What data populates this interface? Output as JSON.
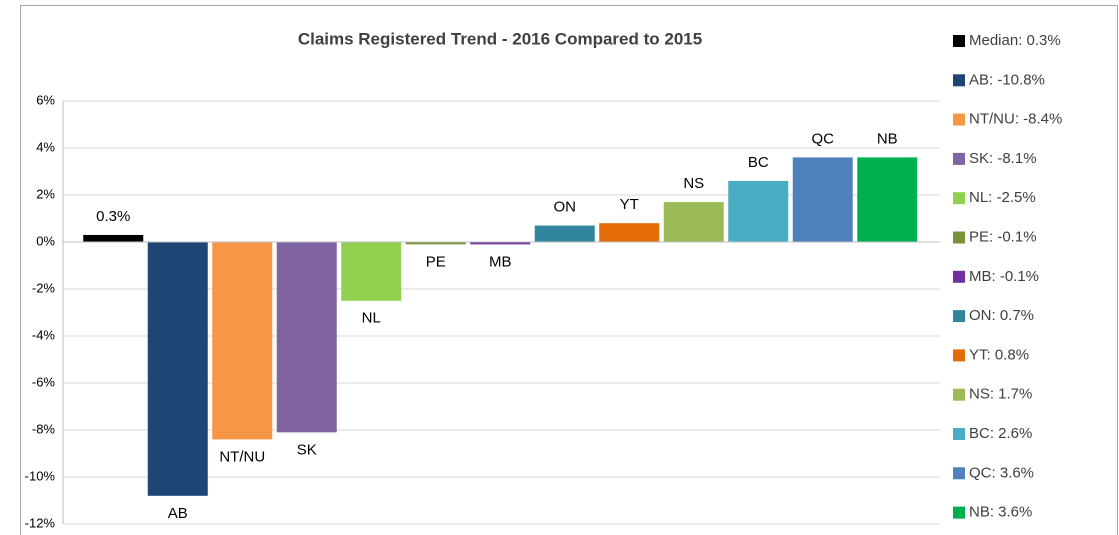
{
  "chart_data": {
    "type": "bar",
    "title": "Claims Registered Trend - 2016 Compared to 2015",
    "labels": [
      "0.3%",
      "AB",
      "NT/NU",
      "SK",
      "NL",
      "PE",
      "MB",
      "ON",
      "YT",
      "NS",
      "BC",
      "QC",
      "NB"
    ],
    "values": [
      0.3,
      -10.8,
      -8.4,
      -8.1,
      -2.5,
      -0.1,
      -0.1,
      0.7,
      0.8,
      1.7,
      2.6,
      3.6,
      3.6
    ],
    "colors": [
      "#000000",
      "#1f4577",
      "#f79646",
      "#8064a2",
      "#92d050",
      "#77933c",
      "#7030a0",
      "#31859c",
      "#e36c09",
      "#9bbb59",
      "#4bacc6",
      "#4f81bd",
      "#00b050"
    ],
    "legend": [
      "Median: 0.3%",
      "AB: -10.8%",
      "NT/NU: -8.4%",
      "SK: -8.1%",
      "NL: -2.5%",
      "PE: -0.1%",
      "MB: -0.1%",
      "ON: 0.7%",
      "YT: 0.8%",
      "NS: 1.7%",
      "BC: 2.6%",
      "QC: 3.6%",
      "NB: 3.6%"
    ],
    "ylim": [
      -12,
      6
    ],
    "yticks": [
      {
        "value": 6,
        "label": "6%"
      },
      {
        "value": 4,
        "label": "4%"
      },
      {
        "value": 2,
        "label": "2%"
      },
      {
        "value": 0,
        "label": "0%"
      },
      {
        "value": -2,
        "label": "-2%"
      },
      {
        "value": -4,
        "label": "-4%"
      },
      {
        "value": -6,
        "label": "-6%"
      },
      {
        "value": -8,
        "label": "-8%"
      },
      {
        "value": -10,
        "label": "-10%"
      },
      {
        "value": -12,
        "label": "-12%"
      }
    ],
    "grid": true
  }
}
